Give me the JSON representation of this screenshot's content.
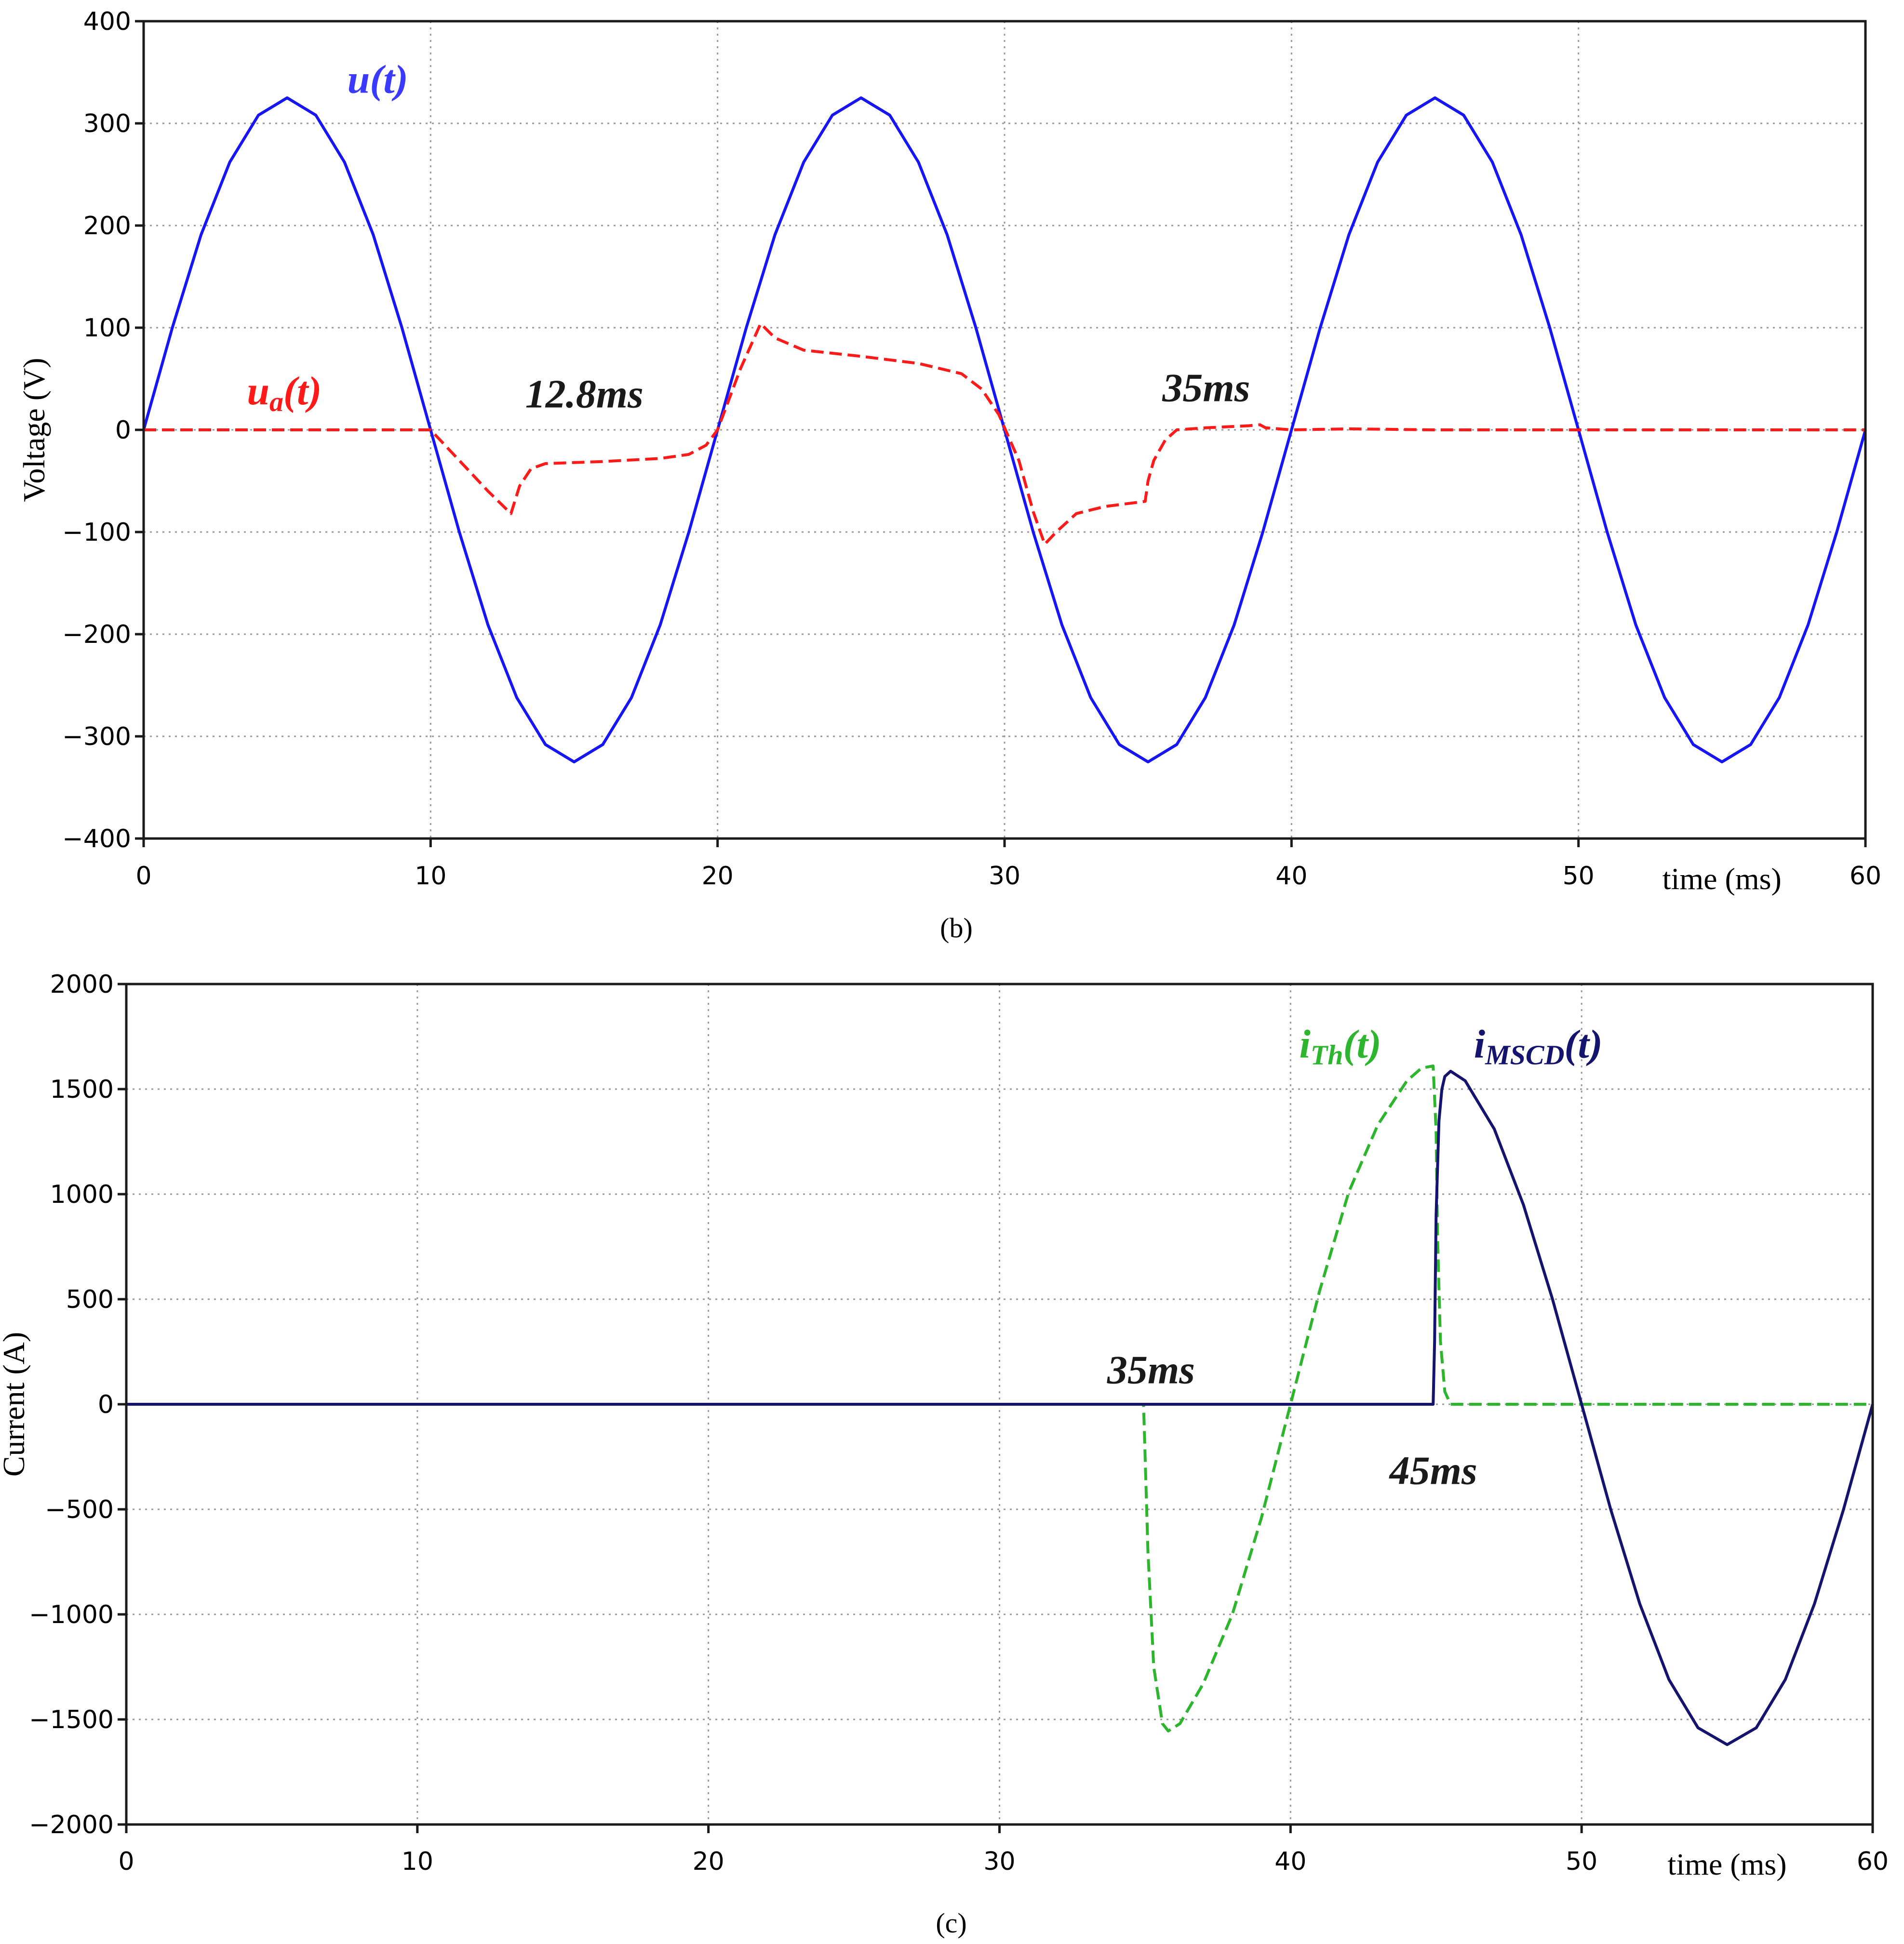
{
  "chart_data": [
    {
      "type": "line",
      "caption": "(b)",
      "ylabel": "Voltage (V)",
      "xlabel": "time (ms)",
      "xlim": [
        0,
        60
      ],
      "ylim": [
        -400,
        400
      ],
      "xticks": [
        0,
        10,
        20,
        30,
        40,
        50,
        60
      ],
      "yticks": [
        400,
        300,
        200,
        100,
        0,
        -100,
        -200,
        -300,
        -400
      ],
      "ytick_labels": [
        "400",
        "300",
        "200",
        "100",
        "0",
        "−100",
        "−200",
        "−300",
        "−400"
      ],
      "grid": true,
      "series": [
        {
          "name": "u(t)",
          "color": "#1515f5",
          "style": "solid",
          "x": [
            0,
            1,
            2,
            3,
            4,
            5,
            6,
            7,
            8,
            9,
            10,
            11,
            12,
            13,
            14,
            15,
            16,
            17,
            18,
            19,
            20,
            21,
            22,
            23,
            24,
            25,
            26,
            27,
            28,
            29,
            30,
            31,
            32,
            33,
            34,
            35,
            36,
            37,
            38,
            39,
            40,
            41,
            42,
            43,
            44,
            45,
            46,
            47,
            48,
            49,
            50,
            51,
            52,
            53,
            54,
            55,
            56,
            57,
            58,
            59,
            60
          ],
          "y": [
            0,
            100,
            191,
            262,
            308,
            325,
            308,
            262,
            191,
            100,
            0,
            -100,
            -191,
            -262,
            -308,
            -325,
            -308,
            -262,
            -191,
            -100,
            0,
            100,
            191,
            262,
            308,
            325,
            308,
            262,
            191,
            100,
            0,
            -100,
            -191,
            -262,
            -308,
            -325,
            -308,
            -262,
            -191,
            -100,
            0,
            100,
            191,
            262,
            308,
            325,
            308,
            262,
            191,
            100,
            0,
            -100,
            -191,
            -262,
            -308,
            -325,
            -308,
            -262,
            -191,
            -100,
            0
          ]
        },
        {
          "name": "ua(t)",
          "color": "#ff1a1a",
          "style": "dashed",
          "x": [
            0,
            5,
            10,
            11,
            12,
            12.8,
            13.1,
            13.5,
            14,
            16,
            18,
            19,
            19.6,
            20,
            20.8,
            21.5,
            22,
            23,
            25,
            27,
            28.5,
            29.2,
            29.8,
            30.5,
            31,
            31.4,
            31.8,
            32.5,
            33.5,
            34.9,
            35,
            35.2,
            35.6,
            36,
            37,
            38.5,
            38.9,
            39.1,
            40,
            42,
            45,
            50,
            55,
            60
          ],
          "y": [
            0,
            0,
            0,
            -30,
            -60,
            -82,
            -55,
            -38,
            -33,
            -31,
            -28,
            -24,
            -15,
            0,
            60,
            104,
            90,
            78,
            72,
            65,
            55,
            40,
            15,
            -30,
            -80,
            -112,
            -100,
            -82,
            -75,
            -70,
            -50,
            -30,
            -10,
            0,
            2,
            4,
            5,
            2,
            0,
            1,
            0,
            0,
            0,
            0
          ]
        }
      ],
      "annotations": [
        {
          "label_main": "u",
          "label_sub": "",
          "label_tail": "(t)",
          "color": "#3a3aff",
          "x": 7.1,
          "y": 330
        },
        {
          "label_main": "u",
          "label_sub": "a",
          "label_tail": "(t)",
          "color": "#ff1a1a",
          "x": 3.6,
          "y": 25
        },
        {
          "label_main": "12.8ms",
          "label_sub": "",
          "label_tail": "",
          "color": "#1a1a1a",
          "x": 13.3,
          "y": 22
        },
        {
          "label_main": "35ms",
          "label_sub": "",
          "label_tail": "",
          "color": "#1a1a1a",
          "x": 35.5,
          "y": 28
        }
      ]
    },
    {
      "type": "line",
      "caption": "(c)",
      "ylabel": "Current (A)",
      "xlabel": "time (ms)",
      "xlim": [
        0,
        60
      ],
      "ylim": [
        -2000,
        2000
      ],
      "xticks": [
        0,
        10,
        20,
        30,
        40,
        50,
        60
      ],
      "yticks": [
        2000,
        1500,
        1000,
        500,
        0,
        -500,
        -1000,
        -1500,
        -2000
      ],
      "ytick_labels": [
        "2000",
        "1500",
        "1000",
        "500",
        "0",
        "−500",
        "−1000",
        "−1500",
        "−2000"
      ],
      "grid": true,
      "series": [
        {
          "name": "iTh(t)",
          "color": "#2db52d",
          "style": "dashed",
          "x": [
            0,
            34.95,
            35.1,
            35.3,
            35.6,
            35.8,
            36.2,
            37,
            38,
            39,
            40,
            41,
            42,
            43,
            44,
            44.5,
            44.9,
            45,
            45.05,
            45.15,
            45.3,
            45.5,
            46,
            50,
            60
          ],
          "y": [
            0,
            0,
            -700,
            -1250,
            -1520,
            -1555,
            -1520,
            -1330,
            -1000,
            -540,
            0,
            540,
            1010,
            1330,
            1540,
            1600,
            1610,
            1300,
            800,
            300,
            60,
            0,
            0,
            0,
            0
          ]
        },
        {
          "name": "iMSCD(t)",
          "color": "#14146e",
          "style": "solid",
          "x": [
            0,
            44.9,
            44.95,
            45,
            45.1,
            45.2,
            45.3,
            45.5,
            46,
            47,
            48,
            49,
            50,
            51,
            52,
            53,
            54,
            55,
            56,
            57,
            58,
            59,
            60
          ],
          "y": [
            0,
            0,
            300,
            900,
            1350,
            1500,
            1560,
            1585,
            1540,
            1310,
            950,
            500,
            0,
            -500,
            -950,
            -1310,
            -1540,
            -1620,
            -1540,
            -1310,
            -950,
            -500,
            0
          ]
        }
      ],
      "annotations": [
        {
          "label_main": "i",
          "label_sub": "Th",
          "label_tail": "(t)",
          "color": "#2db52d",
          "x": 40.3,
          "y": 1650
        },
        {
          "label_main": "i",
          "label_sub": "MSCD",
          "label_tail": "(t)",
          "color": "#14146e",
          "x": 46.3,
          "y": 1650
        },
        {
          "label_main": "35ms",
          "label_sub": "",
          "label_tail": "",
          "color": "#1a1a1a",
          "x": 33.7,
          "y": 100
        },
        {
          "label_main": "45ms",
          "label_sub": "",
          "label_tail": "",
          "color": "#1a1a1a",
          "x": 43.4,
          "y": -380
        }
      ]
    }
  ]
}
